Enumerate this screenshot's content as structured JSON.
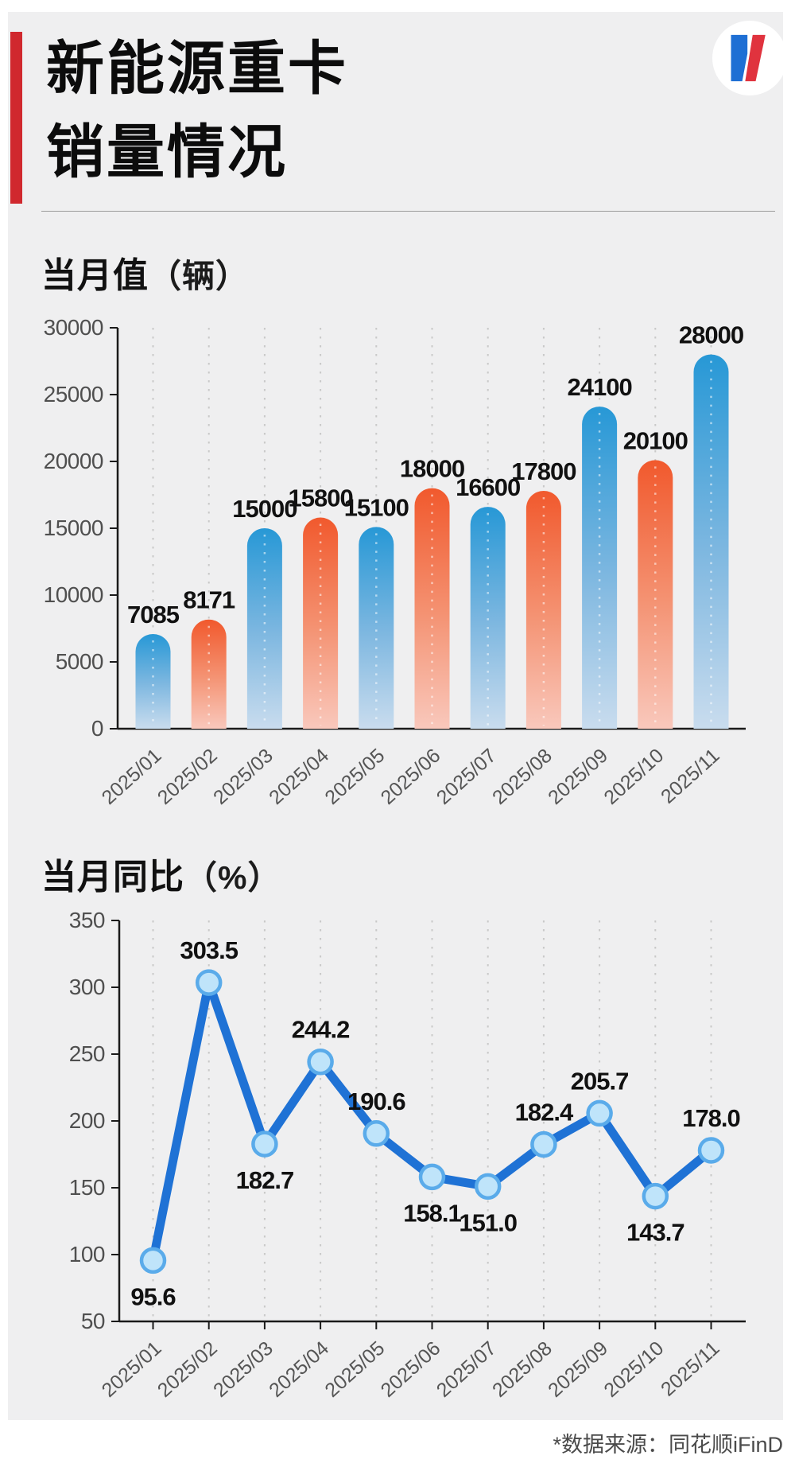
{
  "header": {
    "title_line1": "新能源重卡",
    "title_line2": "销量情况",
    "accent_color": "#d0282e",
    "logo": {
      "name": "brand-logo",
      "circle_color": "#ffffff",
      "blue": "#1e6fd4",
      "red": "#e0333e"
    }
  },
  "footer": {
    "source_note": "*数据来源：同花顺iFinD"
  },
  "chart_data": [
    {
      "type": "bar",
      "title": "当月值",
      "unit": "（辆）",
      "categories": [
        "2025/01",
        "2025/02",
        "2025/03",
        "2025/04",
        "2025/05",
        "2025/06",
        "2025/07",
        "2025/08",
        "2025/09",
        "2025/10",
        "2025/11"
      ],
      "values": [
        7085,
        8171,
        15000,
        15800,
        15100,
        18000,
        16600,
        17800,
        24100,
        20100,
        28000
      ],
      "value_labels": [
        "7085",
        "8171",
        "15000",
        "15800",
        "15100",
        "18000",
        "16600",
        "17800",
        "24100",
        "20100",
        "28000"
      ],
      "ylim": [
        0,
        30000
      ],
      "yticks": [
        0,
        5000,
        10000,
        15000,
        20000,
        25000,
        30000
      ],
      "grid": "dotted-vertical",
      "legend": "none",
      "colors": {
        "odd_bar_top": "#2798d6",
        "odd_bar_mid": "#7db7e0",
        "odd_bar_bottom": "#c9dcee",
        "even_bar_top": "#f1592d",
        "even_bar_mid": "#f49272",
        "even_bar_bottom": "#f9c8bc",
        "axis": "#1a1a1a",
        "grid": "#c9c9c9",
        "tick_label": "#4f4f4f",
        "value_label": "#111111"
      }
    },
    {
      "type": "line",
      "title": "当月同比",
      "unit": "（%）",
      "categories": [
        "2025/01",
        "2025/02",
        "2025/03",
        "2025/04",
        "2025/05",
        "2025/06",
        "2025/07",
        "2025/08",
        "2025/09",
        "2025/10",
        "2025/11"
      ],
      "values": [
        95.6,
        303.5,
        182.7,
        244.2,
        190.6,
        158.1,
        151.0,
        182.4,
        205.7,
        143.7,
        178.0
      ],
      "value_labels": [
        "95.6",
        "303.5",
        "182.7",
        "244.2",
        "190.6",
        "158.1",
        "151.0",
        "182.4",
        "205.7",
        "143.7",
        "178.0"
      ],
      "label_positions": [
        "below",
        "above",
        "below",
        "above",
        "above",
        "below",
        "below",
        "above",
        "above",
        "below",
        "above"
      ],
      "ylim": [
        50,
        350
      ],
      "yticks": [
        50,
        100,
        150,
        200,
        250,
        300,
        350
      ],
      "grid": "dotted-vertical",
      "legend": "none",
      "colors": {
        "line": "#1f72d5",
        "marker_fill": "#bfe4fa",
        "marker_stroke": "#5aabea",
        "axis": "#1a1a1a",
        "grid": "#c9c9c9",
        "tick_label": "#4f4f4f",
        "value_label": "#111111"
      }
    }
  ]
}
